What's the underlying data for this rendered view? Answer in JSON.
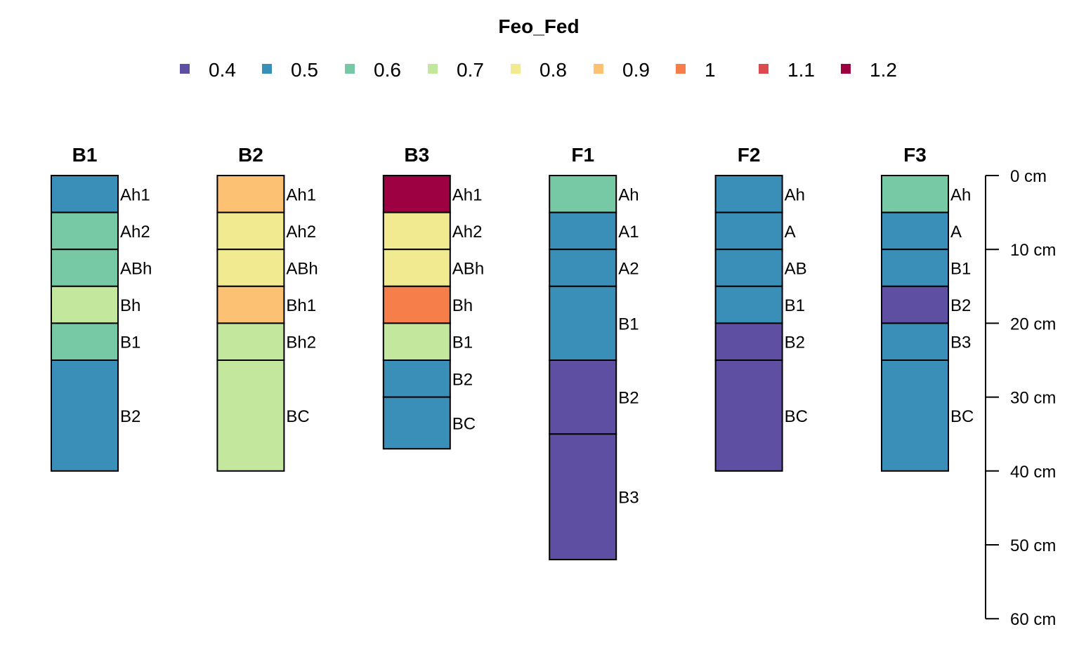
{
  "chart_data": {
    "type": "soil-profile",
    "title": "Feo_Fed",
    "legend": {
      "position": "top",
      "entries": [
        {
          "label": "0.4",
          "color": "#5E4FA2"
        },
        {
          "label": "0.5",
          "color": "#3A8FB9"
        },
        {
          "label": "0.6",
          "color": "#77C8A4"
        },
        {
          "label": "0.7",
          "color": "#C4E79E"
        },
        {
          "label": "0.8",
          "color": "#F2EA91"
        },
        {
          "label": "0.9",
          "color": "#FDC173"
        },
        {
          "label": "1",
          "color": "#F67E4B"
        },
        {
          "label": "1.1",
          "color": "#DB4A4F"
        },
        {
          "label": "1.2",
          "color": "#9E0142"
        }
      ]
    },
    "depth_axis": {
      "unit": "cm",
      "range": [
        0,
        60
      ],
      "ticks": [
        0,
        10,
        20,
        30,
        40,
        50,
        60
      ],
      "tick_labels": [
        "0 cm",
        "10 cm",
        "20 cm",
        "30 cm",
        "40 cm",
        "50 cm",
        "60 cm"
      ],
      "position": "right"
    },
    "profiles": [
      {
        "name": "B1",
        "horizons": [
          {
            "name": "Ah1",
            "top": 0,
            "bottom": 5,
            "value": 0.5
          },
          {
            "name": "Ah2",
            "top": 5,
            "bottom": 10,
            "value": 0.6
          },
          {
            "name": "ABh",
            "top": 10,
            "bottom": 15,
            "value": 0.6
          },
          {
            "name": "Bh",
            "top": 15,
            "bottom": 20,
            "value": 0.7
          },
          {
            "name": "B1",
            "top": 20,
            "bottom": 25,
            "value": 0.6
          },
          {
            "name": "B2",
            "top": 25,
            "bottom": 40,
            "value": 0.5
          }
        ]
      },
      {
        "name": "B2",
        "horizons": [
          {
            "name": "Ah1",
            "top": 0,
            "bottom": 5,
            "value": 0.9
          },
          {
            "name": "Ah2",
            "top": 5,
            "bottom": 10,
            "value": 0.8
          },
          {
            "name": "ABh",
            "top": 10,
            "bottom": 15,
            "value": 0.8
          },
          {
            "name": "Bh1",
            "top": 15,
            "bottom": 20,
            "value": 0.9
          },
          {
            "name": "Bh2",
            "top": 20,
            "bottom": 25,
            "value": 0.7
          },
          {
            "name": "BC",
            "top": 25,
            "bottom": 40,
            "value": 0.7
          }
        ]
      },
      {
        "name": "B3",
        "horizons": [
          {
            "name": "Ah1",
            "top": 0,
            "bottom": 5,
            "value": 1.2
          },
          {
            "name": "Ah2",
            "top": 5,
            "bottom": 10,
            "value": 0.8
          },
          {
            "name": "ABh",
            "top": 10,
            "bottom": 15,
            "value": 0.8
          },
          {
            "name": "Bh",
            "top": 15,
            "bottom": 20,
            "value": 1
          },
          {
            "name": "B1",
            "top": 20,
            "bottom": 25,
            "value": 0.7
          },
          {
            "name": "B2",
            "top": 25,
            "bottom": 30,
            "value": 0.5
          },
          {
            "name": "BC",
            "top": 30,
            "bottom": 37,
            "value": 0.5
          }
        ]
      },
      {
        "name": "F1",
        "horizons": [
          {
            "name": "Ah",
            "top": 0,
            "bottom": 5,
            "value": 0.6
          },
          {
            "name": "A1",
            "top": 5,
            "bottom": 10,
            "value": 0.5
          },
          {
            "name": "A2",
            "top": 10,
            "bottom": 15,
            "value": 0.5
          },
          {
            "name": "B1",
            "top": 15,
            "bottom": 25,
            "value": 0.5
          },
          {
            "name": "B2",
            "top": 25,
            "bottom": 35,
            "value": 0.4
          },
          {
            "name": "B3",
            "top": 35,
            "bottom": 52,
            "value": 0.4
          }
        ]
      },
      {
        "name": "F2",
        "horizons": [
          {
            "name": "Ah",
            "top": 0,
            "bottom": 5,
            "value": 0.5
          },
          {
            "name": "A",
            "top": 5,
            "bottom": 10,
            "value": 0.5
          },
          {
            "name": "AB",
            "top": 10,
            "bottom": 15,
            "value": 0.5
          },
          {
            "name": "B1",
            "top": 15,
            "bottom": 20,
            "value": 0.5
          },
          {
            "name": "B2",
            "top": 20,
            "bottom": 25,
            "value": 0.4
          },
          {
            "name": "BC",
            "top": 25,
            "bottom": 40,
            "value": 0.4
          }
        ]
      },
      {
        "name": "F3",
        "horizons": [
          {
            "name": "Ah",
            "top": 0,
            "bottom": 5,
            "value": 0.6
          },
          {
            "name": "A",
            "top": 5,
            "bottom": 10,
            "value": 0.5
          },
          {
            "name": "B1",
            "top": 10,
            "bottom": 15,
            "value": 0.5
          },
          {
            "name": "B2",
            "top": 15,
            "bottom": 20,
            "value": 0.4
          },
          {
            "name": "B3",
            "top": 20,
            "bottom": 25,
            "value": 0.5
          },
          {
            "name": "BC",
            "top": 25,
            "bottom": 40,
            "value": 0.5
          }
        ]
      }
    ]
  }
}
